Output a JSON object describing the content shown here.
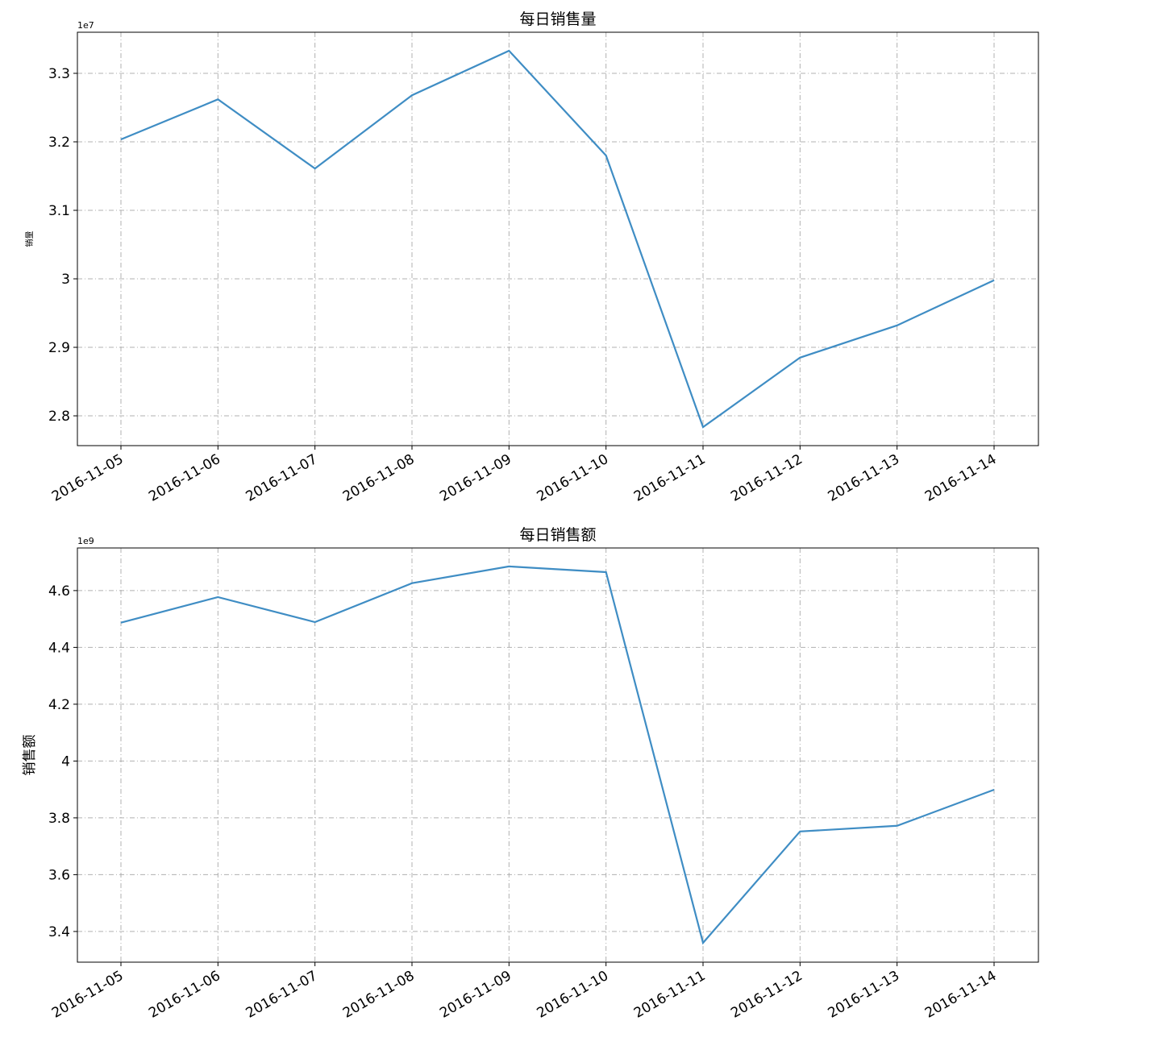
{
  "chart_data": [
    {
      "type": "line",
      "title": "每日销售量",
      "y_label": "销量",
      "offset_label": "1e7",
      "categories": [
        "2016-11-05",
        "2016-11-06",
        "2016-11-07",
        "2016-11-08",
        "2016-11-09",
        "2016-11-10",
        "2016-11-11",
        "2016-11-12",
        "2016-11-13",
        "2016-11-14"
      ],
      "values": [
        3.2035,
        3.262,
        3.161,
        3.268,
        3.333,
        3.18,
        2.7835,
        2.885,
        2.932,
        2.998
      ],
      "color": "#3f8dc4",
      "ylim": [
        2.7565,
        3.36
      ],
      "yticks": [
        2.8,
        2.9,
        3.0,
        3.1,
        3.2,
        3.3
      ],
      "grid": true
    },
    {
      "type": "line",
      "title": "每日销售额",
      "y_label": "销售额",
      "offset_label": "1e9",
      "categories": [
        "2016-11-05",
        "2016-11-06",
        "2016-11-07",
        "2016-11-08",
        "2016-11-09",
        "2016-11-10",
        "2016-11-11",
        "2016-11-12",
        "2016-11-13",
        "2016-11-14"
      ],
      "values": [
        4.487,
        4.577,
        4.489,
        4.626,
        4.685,
        4.665,
        3.36,
        3.752,
        3.772,
        3.899
      ],
      "color": "#3f8dc4",
      "ylim": [
        3.292,
        4.75
      ],
      "yticks": [
        3.4,
        3.6,
        3.8,
        4.0,
        4.2,
        4.4,
        4.6
      ],
      "grid": true
    }
  ]
}
